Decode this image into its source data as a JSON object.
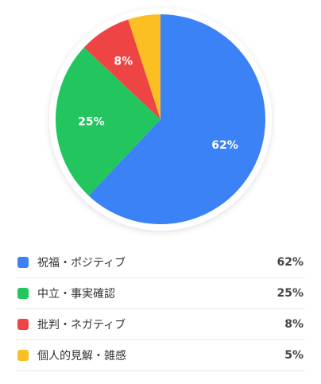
{
  "chart_data": {
    "type": "pie",
    "categories": [
      "祝福・ポジティブ",
      "中立・事実確認",
      "批判・ネガティブ",
      "個人的見解・雑感"
    ],
    "values": [
      62,
      25,
      8,
      5
    ],
    "colors": [
      "#3b82f6",
      "#22c55e",
      "#ef4444",
      "#fbbf24"
    ],
    "slice_labels": [
      "62%",
      "25%",
      "8%",
      ""
    ],
    "start": "top, clockwise",
    "legend_placement": "bottom"
  },
  "legend": {
    "items": [
      {
        "label": "祝福・ポジティブ",
        "value": "62%",
        "color": "#3b82f6"
      },
      {
        "label": "中立・事実確認",
        "value": "25%",
        "color": "#22c55e"
      },
      {
        "label": "批判・ネガティブ",
        "value": "8%",
        "color": "#ef4444"
      },
      {
        "label": "個人的見解・雑感",
        "value": "5%",
        "color": "#fbbf24"
      }
    ]
  }
}
